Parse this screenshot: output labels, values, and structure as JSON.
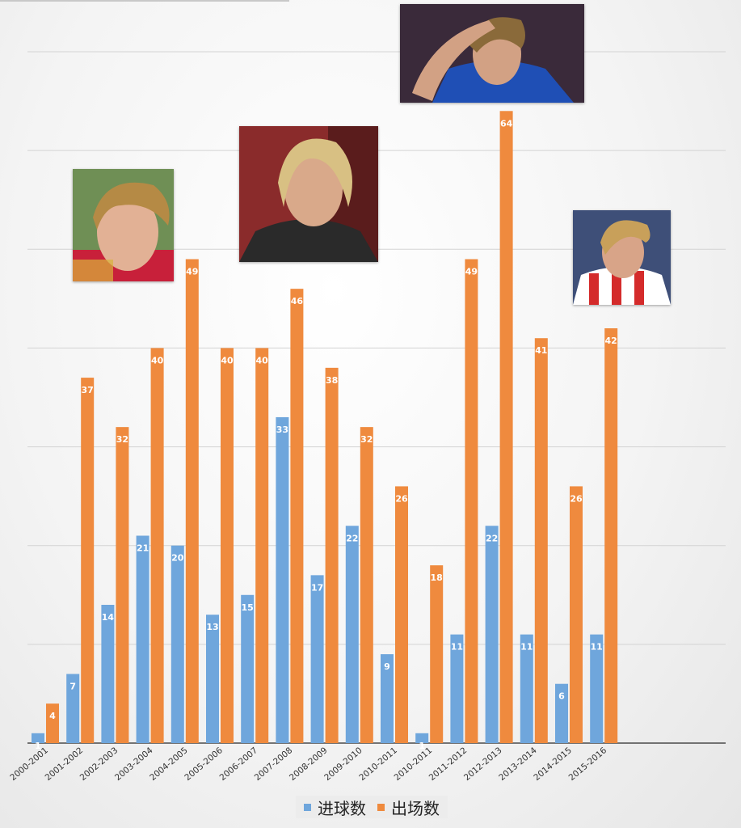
{
  "chart_data": {
    "type": "bar",
    "categories": [
      "2000-2001",
      "2001-2002",
      "2002-2003",
      "2003-2004",
      "2004-2005",
      "2005-2006",
      "2006-2007",
      "2007-2008",
      "2008-2009",
      "2009-2010",
      "2010-2011",
      "2010-2011",
      "2011-2012",
      "2012-2013",
      "2013-2014",
      "2014-2015",
      "2015-2016"
    ],
    "series": [
      {
        "name": "进球数",
        "color": "#6fa6dc",
        "values": [
          1,
          7,
          14,
          21,
          20,
          13,
          15,
          33,
          17,
          22,
          9,
          1,
          11,
          22,
          11,
          6,
          11
        ]
      },
      {
        "name": "出场数",
        "color": "#ef8a3e",
        "values": [
          4,
          37,
          32,
          40,
          49,
          40,
          40,
          46,
          38,
          32,
          26,
          18,
          49,
          64,
          41,
          26,
          42
        ]
      }
    ],
    "ylim": [
      0,
      70
    ],
    "grid": true,
    "data_labels": true,
    "legend_position": "bottom",
    "photo_labels": [
      "photo-spain",
      "photo-liverpool",
      "photo-chelsea",
      "photo-atletico"
    ]
  }
}
